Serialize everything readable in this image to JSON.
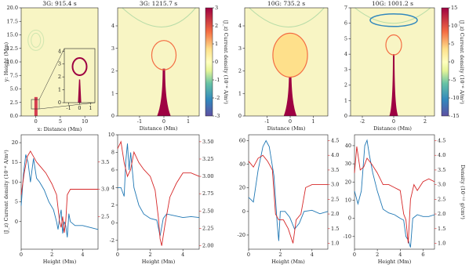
{
  "chart_data": [
    {
      "type": "image",
      "title": "3G: 915.4 s",
      "xlabel": "x: Distance (Mm)",
      "ylabel": "y: Height (Mm)",
      "xlim": [
        -3,
        12.7
      ],
      "ylim": [
        0,
        20
      ],
      "xticks": [
        0,
        5,
        10
      ],
      "yticks": [
        {
          "value": 0,
          "label": "0.0"
        },
        2.5,
        {
          "value": 5,
          "label": "5.0"
        },
        7.5,
        {
          "value": 10,
          "label": "10.0"
        },
        12.5,
        {
          "value": 15,
          "label": "15.0"
        },
        17.5,
        {
          "value": 20,
          "label": "20.0"
        }
      ]
    },
    {
      "type": "image",
      "xlim": [
        -1.4,
        1.4
      ],
      "ylim": [
        0,
        4.2
      ],
      "xticks": [
        -1,
        0,
        1
      ],
      "yticks": [
        0,
        1,
        2,
        3,
        4
      ]
    },
    {
      "type": "image",
      "title": "3G: 1215.7 s",
      "xlabel": "Distance (Mm)",
      "xlim": [
        -1.9,
        1.45
      ],
      "ylim": [
        0,
        4.8
      ],
      "xticks": [
        -1,
        0,
        1
      ],
      "yticks": [
        0,
        1,
        2,
        3,
        4
      ],
      "colorbar": {
        "label": "⟨J_z⟩ Current density (10⁻⁶ A/m²)",
        "lim": [
          -3,
          3
        ],
        "ticks": [
          -3,
          -2,
          -1,
          0,
          1,
          2,
          3
        ]
      }
    },
    {
      "type": "image",
      "title": "10G: 735.2 s",
      "xlabel": "Distance (Mm)",
      "xlim": [
        -1.97,
        1.63
      ],
      "ylim": [
        0,
        4.8
      ],
      "xticks": [
        -1,
        0,
        1
      ],
      "yticks": [
        0,
        1,
        2,
        3,
        4
      ]
    },
    {
      "type": "image",
      "title": "10G: 1001.2 s",
      "xlabel": "Distance (Mm)",
      "xlim": [
        -2.75,
        2.6
      ],
      "ylim": [
        0,
        7
      ],
      "xticks": [
        -2,
        0,
        2
      ],
      "yticks": [
        0,
        1,
        2,
        3,
        4,
        5,
        6,
        7
      ],
      "colorbar": {
        "label": "⟨J_z⟩ Current density (10⁻⁶ A/m²)",
        "lim": [
          -15,
          15
        ],
        "ticks": [
          -15,
          -10,
          -5,
          0,
          5,
          10,
          15
        ]
      }
    },
    {
      "type": "line",
      "xlabel": "Height (Mm)",
      "ylabel": "⟨J_z⟩ Current density (10⁻⁶ A/m²)",
      "xlim": [
        0,
        5
      ],
      "ylim": [
        -7,
        22
      ],
      "y2lim": [
        1.9,
        4.0
      ],
      "xticks": [
        0,
        2,
        4
      ],
      "yticks": [
        0,
        5,
        10,
        15,
        20
      ],
      "y2ticks": [
        2.5,
        {
          "value": 3,
          "label": "3.0"
        },
        3.5
      ],
      "series": [
        {
          "color": "#1f77b4",
          "x": [
            0,
            0.15,
            0.3,
            0.45,
            0.6,
            0.8,
            1.0,
            1.2,
            1.5,
            1.8,
            2.1,
            2.3,
            2.4,
            2.5,
            2.6,
            2.7,
            2.8,
            2.9,
            3.0,
            3.1,
            3.2,
            3.5,
            4,
            4.5,
            5
          ],
          "values": [
            4,
            12,
            17,
            15,
            10,
            16,
            11,
            10,
            8,
            5,
            3,
            0,
            -2,
            1,
            3,
            -3,
            0,
            -1,
            -4,
            2,
            0,
            -1,
            -1,
            -1.5,
            -2
          ]
        },
        {
          "color": "#d62728",
          "axis": "y2",
          "x": [
            0,
            0.2,
            0.4,
            0.6,
            0.8,
            1.0,
            1.3,
            1.6,
            2.0,
            2.3,
            2.5,
            2.6,
            2.7,
            2.8,
            2.9,
            3.0,
            3.2,
            4,
            5
          ],
          "values": [
            2.9,
            3.3,
            3.6,
            3.7,
            3.6,
            3.5,
            3.4,
            3.3,
            3.1,
            2.9,
            2.4,
            2.3,
            2.5,
            2.2,
            2.4,
            2.9,
            3.0,
            3.0,
            3.0
          ]
        }
      ]
    },
    {
      "type": "line",
      "xlabel": "Height (Mm)",
      "xlim": [
        0,
        5
      ],
      "ylim": [
        -3,
        10
      ],
      "y2lim": [
        1.95,
        3.6
      ],
      "xticks": [
        0,
        2,
        4
      ],
      "yticks": [
        -2,
        0,
        2,
        4,
        6,
        8,
        10
      ],
      "y2ticks": [
        {
          "value": 2,
          "label": "2.00"
        },
        2.25,
        {
          "value": 2.5,
          "label": "2.50"
        },
        2.75,
        {
          "value": 3,
          "label": "3.00"
        },
        3.25,
        {
          "value": 3.5,
          "label": "3.50"
        }
      ],
      "series": [
        {
          "color": "#1f77b4",
          "x": [
            0,
            0.2,
            0.4,
            0.5,
            0.6,
            0.7,
            0.8,
            1.0,
            1.3,
            1.6,
            2.0,
            2.4,
            2.6,
            2.8,
            3.0,
            3.5,
            4,
            4.5,
            5
          ],
          "values": [
            4,
            4,
            3,
            7,
            9,
            6,
            8,
            4,
            2,
            1,
            0.5,
            0.3,
            -1.5,
            0.5,
            1,
            0.8,
            0.6,
            0.7,
            0.6
          ]
        },
        {
          "color": "#d62728",
          "axis": "y2",
          "x": [
            0,
            0.2,
            0.4,
            0.6,
            0.8,
            1.0,
            1.3,
            1.6,
            2.0,
            2.3,
            2.5,
            2.6,
            2.7,
            2.9,
            3.2,
            3.6,
            4,
            4.5,
            5
          ],
          "values": [
            3.4,
            3.5,
            3.2,
            3.0,
            3.1,
            3.35,
            3.2,
            3.1,
            3.0,
            2.8,
            2.4,
            2.1,
            2.0,
            2.3,
            2.7,
            2.9,
            3.05,
            3.05,
            3.0
          ]
        }
      ]
    },
    {
      "type": "line",
      "xlabel": "Height (Mm)",
      "xlim": [
        0,
        5
      ],
      "ylim": [
        -32,
        65
      ],
      "y2lim": [
        0.8,
        4.7
      ],
      "xticks": [
        0,
        2,
        4
      ],
      "yticks": [
        -20,
        0,
        20,
        40,
        60
      ],
      "y2ticks": [
        {
          "value": 1,
          "label": "1.0"
        },
        1.5,
        {
          "value": 2,
          "label": "2.0"
        },
        2.5,
        {
          "value": 3,
          "label": "3.0"
        },
        3.5,
        {
          "value": 4,
          "label": "4.0"
        },
        4.5
      ],
      "series": [
        {
          "color": "#1f77b4",
          "x": [
            0,
            0.3,
            0.6,
            0.9,
            1.1,
            1.3,
            1.6,
            1.8,
            1.9,
            2.0,
            2.3,
            2.6,
            2.9,
            3.2,
            3.5,
            4,
            4.5,
            5
          ],
          "values": [
            12,
            8,
            35,
            55,
            60,
            55,
            30,
            -10,
            -25,
            0,
            0,
            -5,
            -15,
            -10,
            0,
            1,
            -2,
            0
          ]
        },
        {
          "color": "#d62728",
          "axis": "y2",
          "x": [
            0,
            0.3,
            0.6,
            0.9,
            1.2,
            1.5,
            1.7,
            1.9,
            2.2,
            2.5,
            2.8,
            3.0,
            3.3,
            3.6,
            4,
            4.5,
            5
          ],
          "values": [
            3.8,
            3.6,
            3.9,
            4.0,
            3.8,
            3.5,
            2.0,
            1.8,
            1.8,
            1.5,
            1.0,
            1.8,
            2.0,
            2.9,
            3.0,
            3.0,
            3.0
          ]
        }
      ]
    },
    {
      "type": "line",
      "xlabel": "Height (Mm)",
      "y2label": "Density (10⁻¹² g/cm³)",
      "xlim": [
        0,
        7
      ],
      "ylim": [
        -17,
        46
      ],
      "y2lim": [
        0.8,
        4.7
      ],
      "xticks": [
        0,
        2,
        4,
        6
      ],
      "yticks": [
        -10,
        0,
        10,
        20,
        30,
        40
      ],
      "y2ticks": [
        {
          "value": 1,
          "label": "1.0"
        },
        1.5,
        {
          "value": 2,
          "label": "2.0"
        },
        2.5,
        {
          "value": 3,
          "label": "3.0"
        },
        3.5,
        {
          "value": 4,
          "label": "4.0"
        },
        4.5
      ],
      "series": [
        {
          "color": "#1f77b4",
          "x": [
            0,
            0.3,
            0.6,
            0.9,
            1.1,
            1.3,
            1.6,
            2,
            2.5,
            3,
            3.5,
            4,
            4.3,
            4.5,
            4.7,
            4.9,
            5.1,
            5.5,
            6,
            6.5,
            7
          ],
          "values": [
            15,
            8,
            15,
            40,
            43,
            35,
            25,
            15,
            5,
            3,
            2,
            0,
            -1,
            -10,
            -12,
            -16,
            0,
            2,
            1,
            1,
            2
          ]
        },
        {
          "color": "#d62728",
          "axis": "y2",
          "x": [
            0,
            0.2,
            0.5,
            0.8,
            1.1,
            1.5,
            2.0,
            2.5,
            3.0,
            3.5,
            4.0,
            4.3,
            4.5,
            4.7,
            4.9,
            5.2,
            5.5,
            6,
            6.5,
            7
          ],
          "values": [
            3.4,
            4.3,
            3.5,
            3.6,
            3.9,
            3.7,
            3.4,
            3.0,
            3.0,
            2.9,
            2.8,
            2.0,
            1.8,
            1.0,
            2.5,
            3.0,
            2.8,
            3.1,
            3.2,
            3.1
          ]
        }
      ]
    }
  ]
}
